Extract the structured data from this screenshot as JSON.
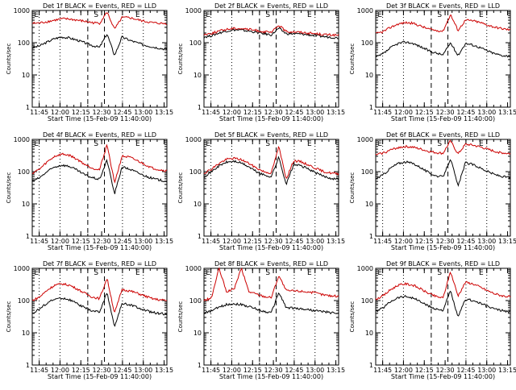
{
  "chart_data": [
    {
      "type": "line",
      "title": "Det 1f BLACK = Events, RED = LLD",
      "xlabel": "Start Time (15-Feb-09 11:40:00)",
      "ylabel": "Counts/sec",
      "y_scale": "log",
      "ylim": [
        1,
        1000
      ],
      "x_tick_labels": [
        "11:45",
        "12:00",
        "12:15",
        "12:30",
        "12:45",
        "13:00",
        "13:15"
      ],
      "y_tick_labels": [
        "1",
        "10",
        "100",
        "1000"
      ],
      "markers": [
        "E",
        "S",
        "E"
      ],
      "series": [
        {
          "color": "#000000",
          "values": [
            70,
            80,
            105,
            135,
            150,
            140,
            120,
            100,
            82,
            72,
            190,
            40,
            150,
            120,
            100,
            85,
            75,
            68,
            62
          ]
        },
        {
          "color": "#cc0000",
          "values": [
            400,
            410,
            450,
            500,
            550,
            540,
            500,
            460,
            420,
            400,
            900,
            260,
            600,
            600,
            520,
            460,
            420,
            400,
            390
          ]
        }
      ]
    },
    {
      "type": "line",
      "title": "Det 2f BLACK = Events, RED = LLD",
      "xlabel": "Start Time (15-Feb-09 11:40:00)",
      "ylabel": "Counts/sec",
      "y_scale": "log",
      "ylim": [
        1,
        1000
      ],
      "x_tick_labels": [
        "11:45",
        "12:00",
        "12:15",
        "12:30",
        "12:45",
        "13:00",
        "13:15"
      ],
      "y_tick_labels": [
        "1",
        "10",
        "100",
        "1000"
      ],
      "markers": [
        "E",
        "S",
        "E"
      ],
      "series": [
        {
          "color": "#000000",
          "values": [
            150,
            165,
            200,
            230,
            250,
            245,
            230,
            210,
            190,
            175,
            280,
            190,
            190,
            185,
            175,
            165,
            155,
            148,
            140
          ]
        },
        {
          "color": "#cc0000",
          "values": [
            180,
            195,
            230,
            260,
            280,
            275,
            260,
            240,
            220,
            205,
            350,
            220,
            220,
            210,
            200,
            190,
            180,
            175,
            170
          ]
        }
      ]
    },
    {
      "type": "line",
      "title": "Det 3f BLACK = Events, RED = LLD",
      "xlabel": "Start Time (15-Feb-09 11:40:00)",
      "ylabel": "Counts/sec",
      "y_scale": "log",
      "ylim": [
        1,
        1000
      ],
      "x_tick_labels": [
        "11:45",
        "12:00",
        "12:15",
        "12:30",
        "12:45",
        "13:00",
        "13:15"
      ],
      "y_tick_labels": [
        "1",
        "10",
        "100",
        "1000"
      ],
      "markers": [
        "E",
        "S",
        "E"
      ],
      "series": [
        {
          "color": "#000000",
          "values": [
            35,
            45,
            70,
            95,
            105,
            95,
            75,
            58,
            48,
            42,
            100,
            40,
            95,
            85,
            70,
            55,
            45,
            40,
            38
          ]
        },
        {
          "color": "#cc0000",
          "values": [
            190,
            220,
            300,
            380,
            420,
            400,
            330,
            270,
            240,
            230,
            750,
            240,
            500,
            480,
            420,
            350,
            300,
            270,
            250
          ]
        }
      ]
    },
    {
      "type": "line",
      "title": "Det 4f BLACK = Events, RED = LLD",
      "xlabel": "Start Time (15-Feb-09 11:40:00)",
      "ylabel": "Counts/sec",
      "y_scale": "log",
      "ylim": [
        1,
        1000
      ],
      "x_tick_labels": [
        "11:45",
        "12:00",
        "12:15",
        "12:30",
        "12:45",
        "13:00",
        "13:15"
      ],
      "y_tick_labels": [
        "1",
        "10",
        "100",
        "1000"
      ],
      "markers": [
        "E",
        "S",
        "E"
      ],
      "series": [
        {
          "color": "#000000",
          "values": [
            50,
            65,
            100,
            140,
            160,
            145,
            110,
            80,
            65,
            58,
            230,
            20,
            140,
            120,
            95,
            75,
            62,
            55,
            50
          ]
        },
        {
          "color": "#cc0000",
          "values": [
            90,
            120,
            200,
            300,
            350,
            320,
            240,
            170,
            130,
            115,
            700,
            45,
            300,
            280,
            220,
            170,
            130,
            115,
            105
          ]
        }
      ]
    },
    {
      "type": "line",
      "title": "Det 5f BLACK = Events, RED = LLD",
      "xlabel": "Start Time (15-Feb-09 11:40:00)",
      "ylabel": "Counts/sec",
      "y_scale": "log",
      "ylim": [
        1,
        1000
      ],
      "x_tick_labels": [
        "11:45",
        "12:00",
        "12:15",
        "12:30",
        "12:45",
        "13:00",
        "13:15"
      ],
      "y_tick_labels": [
        "1",
        "10",
        "100",
        "1000"
      ],
      "markers": [
        "E",
        "S",
        "E"
      ],
      "series": [
        {
          "color": "#000000",
          "values": [
            70,
            100,
            150,
            195,
            210,
            185,
            140,
            100,
            78,
            70,
            280,
            40,
            170,
            150,
            120,
            90,
            72,
            62,
            58
          ]
        },
        {
          "color": "#cc0000",
          "values": [
            90,
            120,
            180,
            240,
            260,
            235,
            180,
            130,
            100,
            90,
            600,
            60,
            220,
            200,
            160,
            125,
            100,
            90,
            85
          ]
        }
      ]
    },
    {
      "type": "line",
      "title": "Det 6f BLACK = Events, RED = LLD",
      "xlabel": "Start Time (15-Feb-09 11:40:00)",
      "ylabel": "Counts/sec",
      "y_scale": "log",
      "ylim": [
        1,
        1000
      ],
      "x_tick_labels": [
        "11:45",
        "12:00",
        "12:15",
        "12:30",
        "12:45",
        "13:00",
        "13:15"
      ],
      "y_tick_labels": [
        "1",
        "10",
        "100",
        "1000"
      ],
      "markers": [
        "E",
        "S",
        "E"
      ],
      "series": [
        {
          "color": "#000000",
          "values": [
            60,
            80,
            130,
            180,
            200,
            180,
            135,
            95,
            75,
            68,
            260,
            35,
            190,
            165,
            130,
            100,
            80,
            70,
            65
          ]
        },
        {
          "color": "#cc0000",
          "values": [
            330,
            380,
            470,
            560,
            600,
            570,
            500,
            430,
            390,
            370,
            900,
            350,
            700,
            660,
            580,
            490,
            420,
            380,
            360
          ]
        }
      ]
    },
    {
      "type": "line",
      "title": "Det 7f BLACK = Events, RED = LLD",
      "xlabel": "Start Time (15-Feb-09 11:40:00)",
      "ylabel": "Counts/sec",
      "y_scale": "log",
      "ylim": [
        1,
        1000
      ],
      "x_tick_labels": [
        "11:45",
        "12:00",
        "12:15",
        "12:30",
        "12:45",
        "13:00",
        "13:15"
      ],
      "y_tick_labels": [
        "1",
        "10",
        "100",
        "1000"
      ],
      "markers": [
        "E",
        "S",
        "E"
      ],
      "series": [
        {
          "color": "#000000",
          "values": [
            40,
            55,
            85,
            110,
            120,
            105,
            80,
            60,
            48,
            44,
            180,
            15,
            80,
            75,
            62,
            50,
            43,
            40,
            38
          ]
        },
        {
          "color": "#cc0000",
          "values": [
            100,
            130,
            210,
            300,
            330,
            300,
            230,
            170,
            130,
            115,
            500,
            40,
            220,
            200,
            170,
            140,
            115,
            105,
            100
          ]
        }
      ]
    },
    {
      "type": "line",
      "title": "Det 8f BLACK = Events, RED = LLD",
      "xlabel": "Start Time (15-Feb-09 11:40:00)",
      "ylabel": "Counts/sec",
      "y_scale": "log",
      "ylim": [
        1,
        1000
      ],
      "x_tick_labels": [
        "11:45",
        "12:00",
        "12:15",
        "12:30",
        "12:45",
        "13:00",
        "13:15"
      ],
      "y_tick_labels": [
        "1",
        "10",
        "100",
        "1000"
      ],
      "markers": [
        "E",
        "S",
        "E"
      ],
      "series": [
        {
          "color": "#000000",
          "values": [
            40,
            48,
            62,
            75,
            80,
            75,
            65,
            55,
            46,
            42,
            180,
            60,
            58,
            55,
            52,
            48,
            45,
            42,
            40
          ]
        },
        {
          "color": "#cc0000",
          "values": [
            100,
            120,
            1000,
            190,
            220,
            1000,
            190,
            160,
            135,
            125,
            600,
            200,
            200,
            195,
            185,
            170,
            150,
            140,
            135
          ]
        }
      ]
    },
    {
      "type": "line",
      "title": "Det 9f BLACK = Events, RED = LLD",
      "xlabel": "Start Time (15-Feb-09 11:40:00)",
      "ylabel": "Counts/sec",
      "y_scale": "log",
      "ylim": [
        1,
        1000
      ],
      "x_tick_labels": [
        "11:45",
        "12:00",
        "12:15",
        "12:30",
        "12:45",
        "13:00",
        "13:15"
      ],
      "y_tick_labels": [
        "1",
        "10",
        "100",
        "1000"
      ],
      "markers": [
        "E",
        "S",
        "E"
      ],
      "series": [
        {
          "color": "#000000",
          "values": [
            45,
            60,
            95,
            125,
            135,
            120,
            92,
            68,
            55,
            50,
            200,
            30,
            110,
            100,
            82,
            65,
            54,
            48,
            45
          ]
        },
        {
          "color": "#cc0000",
          "values": [
            110,
            140,
            220,
            300,
            330,
            300,
            230,
            170,
            135,
            120,
            800,
            140,
            370,
            330,
            260,
            200,
            160,
            140,
            130
          ]
        }
      ]
    }
  ]
}
